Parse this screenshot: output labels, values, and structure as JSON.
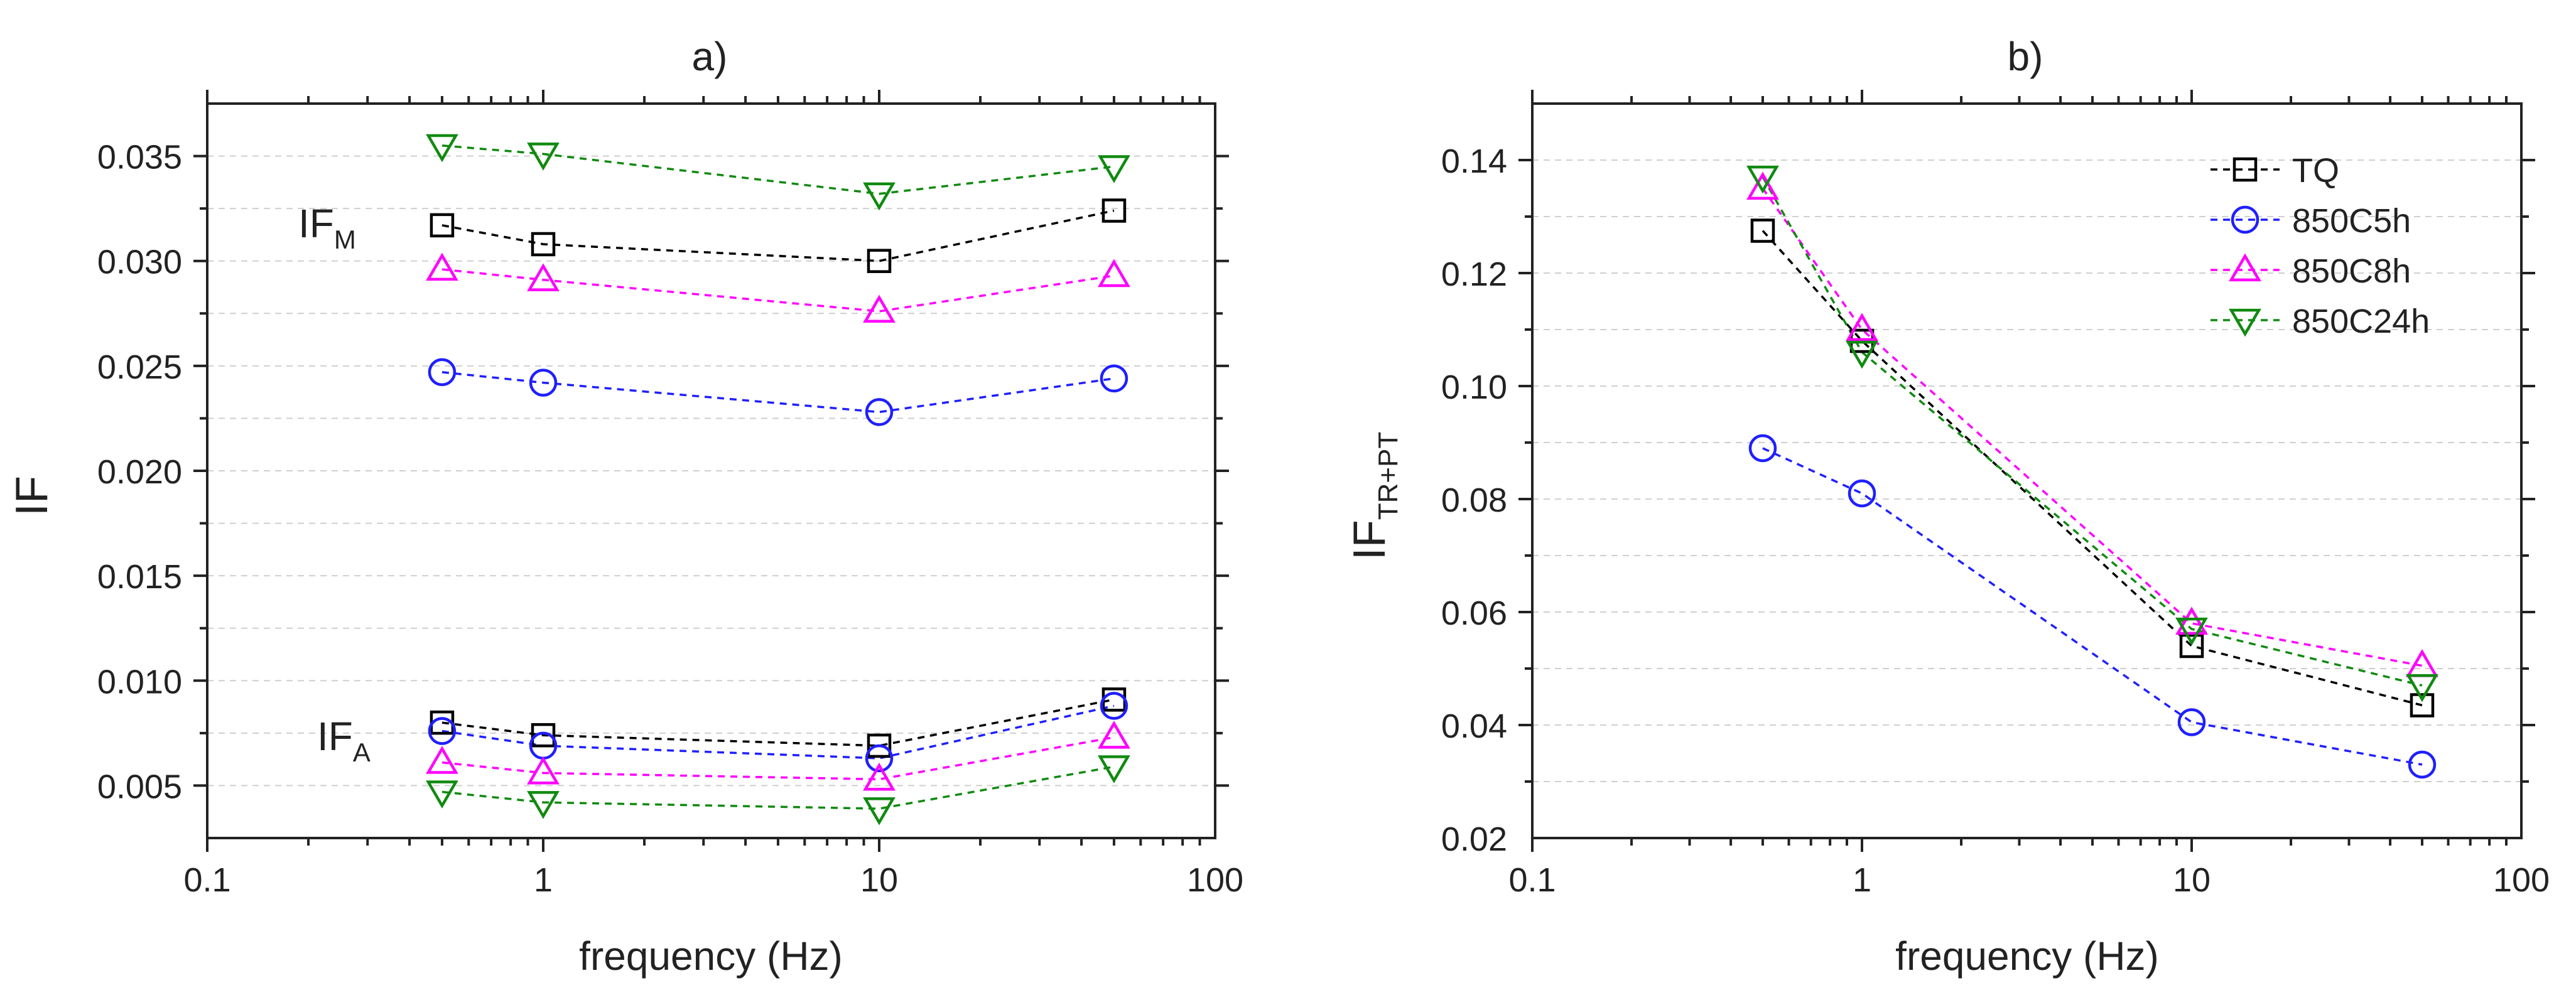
{
  "chart_data": [
    {
      "type": "line",
      "panel_label": "a)",
      "xlabel": "frequency (Hz)",
      "ylabel": "IF",
      "xscale": "log",
      "xlim": [
        0.1,
        100
      ],
      "ylim": [
        0.0025,
        0.0375
      ],
      "x_ticks": [
        0.1,
        1,
        10,
        100
      ],
      "x_tick_labels": [
        "0.1",
        "1",
        "10",
        "100"
      ],
      "y_ticks": [
        0.005,
        0.01,
        0.015,
        0.02,
        0.025,
        0.03,
        0.035
      ],
      "y_tick_labels": [
        "0.005",
        "0.010",
        "0.015",
        "0.020",
        "0.025",
        "0.030",
        "0.035"
      ],
      "grid": true,
      "annotations": [
        {
          "text": "IF",
          "sub": "M",
          "near": "upper group of series"
        },
        {
          "text": "IF",
          "sub": "A",
          "near": "lower group of series"
        }
      ],
      "x": [
        0.5,
        1,
        10,
        50
      ],
      "series": [
        {
          "name": "TQ (IF_M)",
          "color": "#000000",
          "marker": "square",
          "values": [
            0.0317,
            0.0308,
            0.03,
            0.0324
          ]
        },
        {
          "name": "850C5h (IF_M)",
          "color": "#1f1fff",
          "marker": "circle",
          "values": [
            0.0247,
            0.0242,
            0.0228,
            0.0244
          ]
        },
        {
          "name": "850C8h (IF_M)",
          "color": "#ff00ff",
          "marker": "triangle-up",
          "values": [
            0.0296,
            0.0291,
            0.0276,
            0.0293
          ]
        },
        {
          "name": "850C24h (IF_M)",
          "color": "#108a10",
          "marker": "triangle-down",
          "values": [
            0.0355,
            0.0351,
            0.0332,
            0.0345
          ]
        },
        {
          "name": "TQ (IF_A)",
          "color": "#000000",
          "marker": "square",
          "values": [
            0.008,
            0.0074,
            0.0069,
            0.0091
          ]
        },
        {
          "name": "850C5h (IF_A)",
          "color": "#1f1fff",
          "marker": "circle",
          "values": [
            0.0076,
            0.0069,
            0.0063,
            0.0088
          ]
        },
        {
          "name": "850C8h (IF_A)",
          "color": "#ff00ff",
          "marker": "triangle-up",
          "values": [
            0.0061,
            0.0056,
            0.0053,
            0.0073
          ]
        },
        {
          "name": "850C24h (IF_A)",
          "color": "#108a10",
          "marker": "triangle-down",
          "values": [
            0.0047,
            0.0042,
            0.0039,
            0.0059
          ]
        }
      ]
    },
    {
      "type": "line",
      "panel_label": "b)",
      "xlabel": "frequency (Hz)",
      "ylabel": "IF",
      "ylabel_sub": "TR+PT",
      "xscale": "log",
      "xlim": [
        0.1,
        100
      ],
      "ylim": [
        0.02,
        0.15
      ],
      "x_ticks": [
        0.1,
        1,
        10,
        100
      ],
      "x_tick_labels": [
        "0.1",
        "1",
        "10",
        "100"
      ],
      "y_ticks": [
        0.02,
        0.04,
        0.06,
        0.08,
        0.1,
        0.12,
        0.14
      ],
      "y_tick_labels": [
        "0.02",
        "0.04",
        "0.06",
        "0.08",
        "0.10",
        "0.12",
        "0.14"
      ],
      "grid": true,
      "legend_position": "top-right",
      "x": [
        0.5,
        1,
        10,
        50
      ],
      "series": [
        {
          "name": "TQ",
          "color": "#000000",
          "marker": "square",
          "values": [
            0.1275,
            0.108,
            0.054,
            0.0435
          ]
        },
        {
          "name": "850C5h",
          "color": "#1f1fff",
          "marker": "circle",
          "values": [
            0.089,
            0.081,
            0.0405,
            0.033
          ]
        },
        {
          "name": "850C8h",
          "color": "#ff00ff",
          "marker": "triangle-up",
          "values": [
            0.135,
            0.11,
            0.058,
            0.0505
          ]
        },
        {
          "name": "850C24h",
          "color": "#108a10",
          "marker": "triangle-down",
          "values": [
            0.137,
            0.106,
            0.057,
            0.047
          ]
        }
      ]
    }
  ]
}
